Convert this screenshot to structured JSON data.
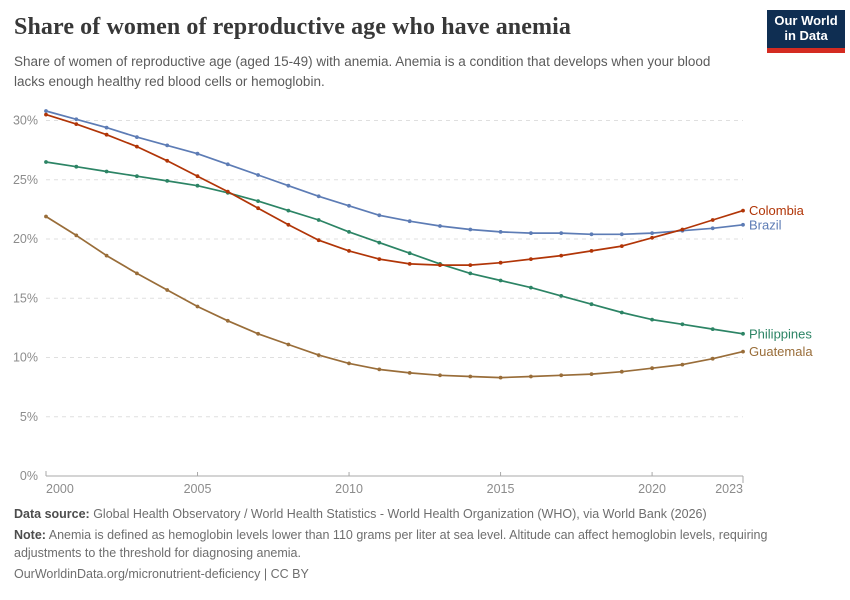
{
  "header": {
    "title": "Share of women of reproductive age who have anemia",
    "subtitle": "Share of women of reproductive age (aged 15-49) with anemia. Anemia is a condition that develops when your blood lacks enough healthy red blood cells or hemoglobin.",
    "logo": {
      "line1": "Our World",
      "line2": "in Data",
      "bg_color": "#0f2e52",
      "accent_color": "#d42b21"
    }
  },
  "chart_data": {
    "type": "line",
    "title": "Share of women of reproductive age who have anemia",
    "x": [
      2000,
      2001,
      2002,
      2003,
      2004,
      2005,
      2006,
      2007,
      2008,
      2009,
      2010,
      2011,
      2012,
      2013,
      2014,
      2015,
      2016,
      2017,
      2018,
      2019,
      2020,
      2021,
      2022,
      2023
    ],
    "series": [
      {
        "name": "Philippines",
        "color": "#2c8465",
        "values": [
          26.5,
          26.1,
          25.7,
          25.3,
          24.9,
          24.5,
          23.9,
          23.2,
          22.4,
          21.6,
          20.6,
          19.7,
          18.8,
          17.9,
          17.1,
          16.5,
          15.9,
          15.2,
          14.5,
          13.8,
          13.2,
          12.8,
          12.4,
          12.0
        ]
      },
      {
        "name": "Guatemala",
        "color": "#996d39",
        "values": [
          21.9,
          20.3,
          18.6,
          17.1,
          15.7,
          14.3,
          13.1,
          12.0,
          11.1,
          10.2,
          9.5,
          9.0,
          8.7,
          8.5,
          8.4,
          8.3,
          8.4,
          8.5,
          8.6,
          8.8,
          9.1,
          9.4,
          9.9,
          10.5
        ]
      },
      {
        "name": "Brazil",
        "color": "#5d7cb5",
        "values": [
          30.8,
          30.1,
          29.4,
          28.6,
          27.9,
          27.2,
          26.3,
          25.4,
          24.5,
          23.6,
          22.8,
          22.0,
          21.5,
          21.1,
          20.8,
          20.6,
          20.5,
          20.5,
          20.4,
          20.4,
          20.5,
          20.7,
          20.9,
          21.2
        ]
      },
      {
        "name": "Colombia",
        "color": "#b13507",
        "values": [
          30.5,
          29.7,
          28.8,
          27.8,
          26.6,
          25.3,
          24.0,
          22.6,
          21.2,
          19.9,
          19.0,
          18.3,
          17.9,
          17.8,
          17.8,
          18.0,
          18.3,
          18.6,
          19.0,
          19.4,
          20.1,
          20.8,
          21.6,
          22.4
        ]
      }
    ],
    "ylim": [
      0,
      30
    ],
    "yticks": [
      0,
      5,
      10,
      15,
      20,
      25,
      30
    ],
    "ytick_suffix": "%",
    "xticks": [
      2000,
      2005,
      2010,
      2015,
      2020,
      2023
    ],
    "xlabel": "",
    "ylabel": "",
    "grid": "horizontal-dashed",
    "legend": "end-of-line-labels",
    "axis_color": "#a8a8a8",
    "grid_color": "#dfdfdf",
    "tick_label_color": "#8c8c8c"
  },
  "footer": {
    "datasource_label": "Data source:",
    "datasource_text": " Global Health Observatory / World Health Statistics - World Health Organization (WHO), via World Bank (2026)",
    "note_label": "Note:",
    "note_text": " Anemia is defined as hemoglobin levels lower than 110 grams per liter at sea level. Altitude can affect hemoglobin levels, requiring adjustments to the threshold for diagnosing anemia.",
    "url_line": "OurWorldinData.org/micronutrient-deficiency | CC BY"
  }
}
